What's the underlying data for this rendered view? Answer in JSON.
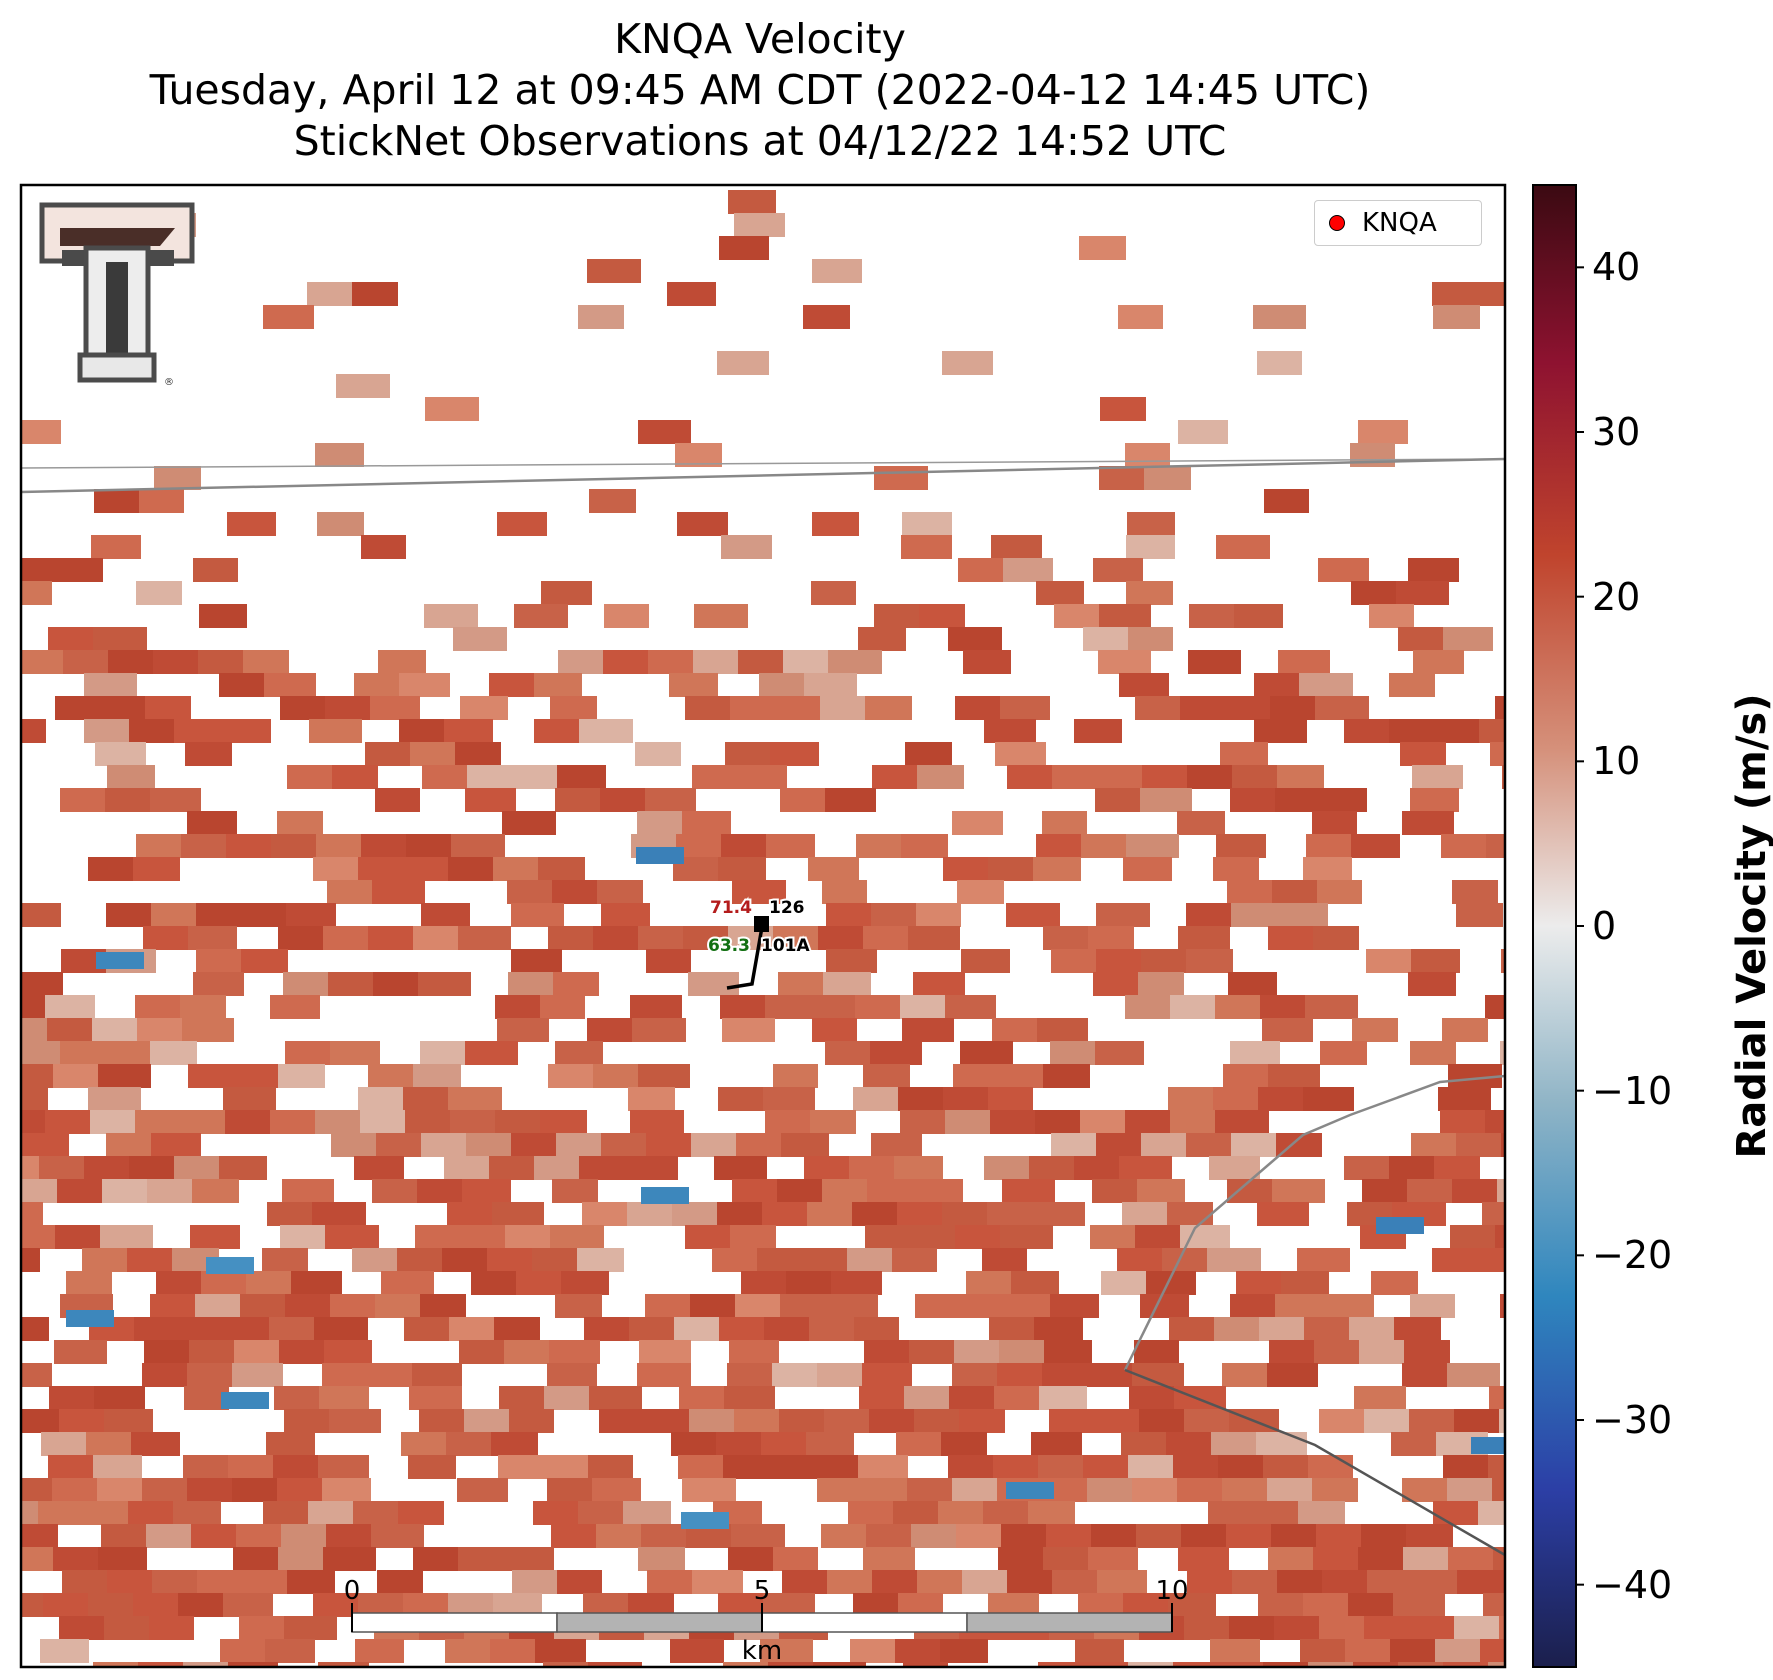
{
  "title": {
    "line1": "KNQA Velocity",
    "line2": "Tuesday, April 12 at 09:45 AM CDT (2022-04-12 14:45 UTC)",
    "line3": "StickNet Observations at 04/12/22 14:52 UTC"
  },
  "legend": {
    "label": "KNQA",
    "marker_color": "#ff0000"
  },
  "colorbar": {
    "label": "Radial Velocity (m/s)",
    "ticks": [
      "40",
      "30",
      "20",
      "10",
      "0",
      "−10",
      "−20",
      "−30",
      "−40"
    ],
    "range": [
      -45,
      45
    ]
  },
  "station": {
    "id": "126",
    "subid": "101A",
    "temperature": "71.4",
    "dewpoint": "63.3",
    "temperature_color": "#b41c1c",
    "dewpoint_color": "#137013"
  },
  "scale_bar": {
    "unit": "km",
    "ticks": [
      "0",
      "5",
      "10"
    ]
  },
  "logo": {
    "name": "texas-tech-double-t-logo"
  },
  "colors": {
    "vel_pos_strong": "#c8553d",
    "vel_pos_light": "#d39a86",
    "vel_neg": "#3d87bc",
    "boundary": "#8a8a8a"
  }
}
